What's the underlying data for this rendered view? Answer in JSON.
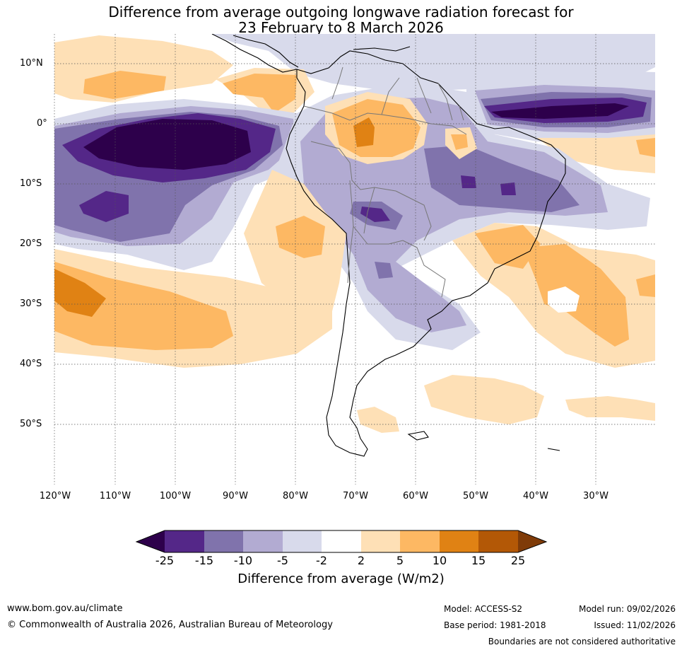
{
  "title": {
    "line1": "Difference from average outgoing longwave radiation forecast for",
    "line2": "23 February to 8 March 2026"
  },
  "map": {
    "lat_labels": [
      "10°N",
      "0°",
      "10°S",
      "20°S",
      "30°S",
      "40°S",
      "50°S"
    ],
    "lon_labels": [
      "120°W",
      "110°W",
      "100°W",
      "90°W",
      "80°W",
      "70°W",
      "60°W",
      "50°W",
      "40°W",
      "30°W"
    ],
    "colors": {
      "n25": "#2d004b",
      "n15": "#542788",
      "n10": "#8073ac",
      "n5": "#b2abd2",
      "n2": "#d8daeb",
      "p2": "#fee0b6",
      "p5": "#fdb863",
      "p10": "#e08214",
      "p15": "#b35806",
      "p25": "#7f3b08"
    }
  },
  "colorbar": {
    "ticks": [
      "-25",
      "-15",
      "-10",
      "-5",
      "-2",
      "2",
      "5",
      "10",
      "15",
      "25"
    ],
    "label": "Difference from average (W/m2)"
  },
  "footer": {
    "website": "www.bom.gov.au/climate",
    "copyright": "© Commonwealth of Australia 2026, Australian Bureau of Meteorology",
    "model": "Model: ACCESS-S2",
    "base_period": "Base period: 1981-2018",
    "model_run": "Model run: 09/02/2026",
    "issued": "Issued: 11/02/2026",
    "boundaries": "Boundaries are not considered authoritative"
  }
}
